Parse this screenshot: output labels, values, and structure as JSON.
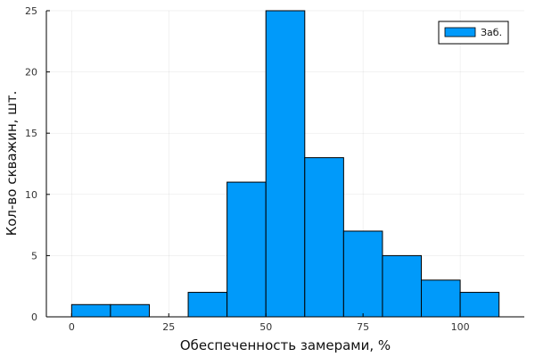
{
  "chart_data": {
    "type": "bar",
    "subtype": "histogram",
    "xlabel": "Обеспеченность замерами, %",
    "ylabel": "Кол-во скважин, шт.",
    "bins": [
      {
        "from": 0,
        "to": 10,
        "count": 1
      },
      {
        "from": 10,
        "to": 20,
        "count": 1
      },
      {
        "from": 20,
        "to": 30,
        "count": 0
      },
      {
        "from": 30,
        "to": 40,
        "count": 2
      },
      {
        "from": 40,
        "to": 50,
        "count": 11
      },
      {
        "from": 50,
        "to": 60,
        "count": 25
      },
      {
        "from": 60,
        "to": 70,
        "count": 13
      },
      {
        "from": 70,
        "to": 80,
        "count": 7
      },
      {
        "from": 80,
        "to": 90,
        "count": 5
      },
      {
        "from": 90,
        "to": 100,
        "count": 3
      },
      {
        "from": 100,
        "to": 110,
        "count": 2
      }
    ],
    "xlim": [
      -6.5,
      116.5
    ],
    "ylim": [
      0,
      25
    ],
    "xticks": [
      0,
      25,
      50,
      75,
      100
    ],
    "yticks": [
      0,
      5,
      10,
      15,
      20,
      25
    ],
    "grid": true,
    "series": [
      {
        "name": "Заб.",
        "color": "#009AFA"
      }
    ],
    "legend_position": "top-right"
  }
}
